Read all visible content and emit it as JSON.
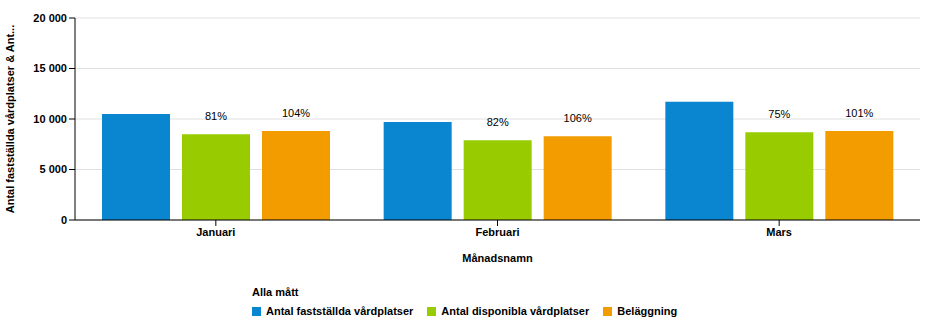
{
  "chart_data": {
    "type": "bar",
    "x_label": "Månadsnamn",
    "y_label": "Antal fastställda vårdplatser & Ant...",
    "categories": [
      "Januari",
      "Februari",
      "Mars"
    ],
    "series": [
      {
        "name": "Antal fastställda vårdplatser",
        "color": "#0a86d0",
        "values": [
          10500,
          9700,
          11700
        ]
      },
      {
        "name": "Antal disponibla vårdplatser",
        "color": "#99cc00",
        "values": [
          8500,
          7900,
          8700
        ],
        "annotations": [
          "81%",
          "82%",
          "75%"
        ]
      },
      {
        "name": "Beläggning",
        "color": "#f39c00",
        "values": [
          8800,
          8300,
          8800
        ],
        "annotations": [
          "104%",
          "106%",
          "101%"
        ]
      }
    ],
    "ylim": [
      0,
      20000
    ],
    "yticks": [
      0,
      {
        "value": 5000,
        "label": "5 000"
      },
      {
        "value": 10000,
        "label": "10 000"
      },
      {
        "value": 15000,
        "label": "15 000"
      },
      {
        "value": 20000,
        "label": "20 000"
      }
    ],
    "grid": true,
    "legend": "bottom",
    "legend_title": "Alla mått"
  }
}
